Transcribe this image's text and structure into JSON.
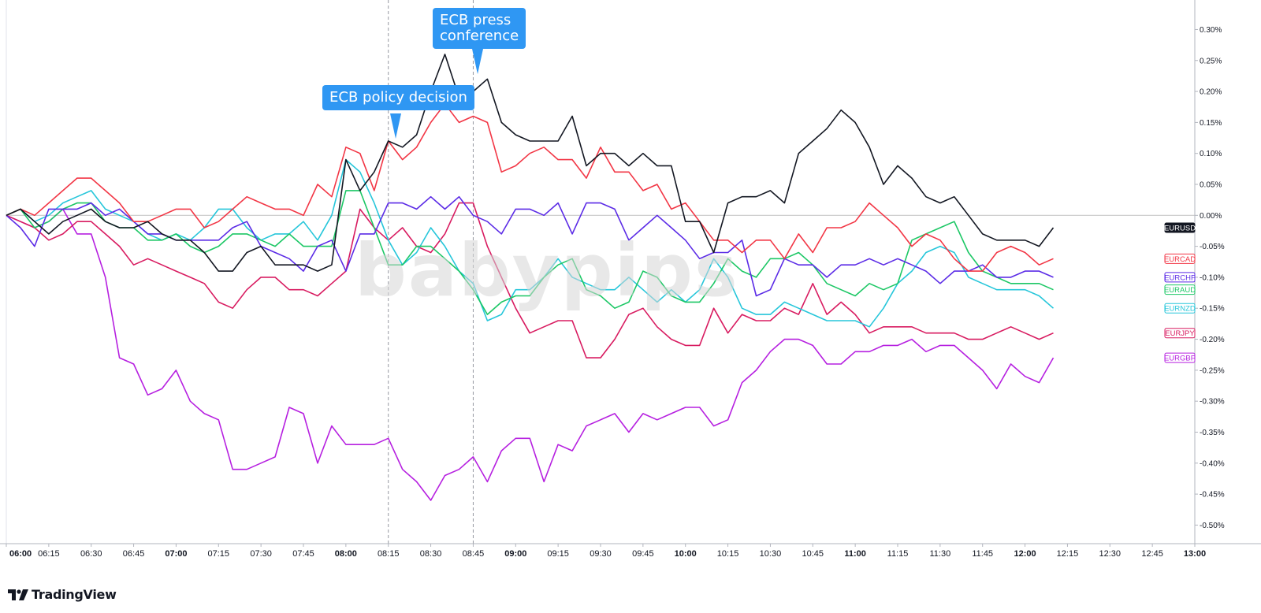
{
  "watermark_text": "babypips",
  "brand": {
    "name": "TradingView",
    "icon": "tradingview-logo-icon"
  },
  "annotations": [
    {
      "id": "policy",
      "text": "ECB policy decision",
      "x_time": "08:15"
    },
    {
      "id": "press",
      "lines": [
        "ECB press",
        "conference"
      ],
      "x_time": "08:45"
    }
  ],
  "chart_data": {
    "type": "line",
    "x_start": "06:00",
    "x_interval_minutes": 5,
    "x_ticks": [
      "06:00",
      "06:15",
      "06:30",
      "06:45",
      "07:00",
      "07:15",
      "07:30",
      "07:45",
      "08:00",
      "08:15",
      "08:30",
      "08:45",
      "09:00",
      "09:15",
      "09:30",
      "09:45",
      "10:00",
      "10:15",
      "10:30",
      "10:45",
      "11:00",
      "11:15",
      "11:30",
      "11:45",
      "12:00",
      "12:15",
      "12:30",
      "12:45",
      "13:00"
    ],
    "x_major_ticks": [
      "06:00",
      "07:00",
      "08:00",
      "09:00",
      "10:00",
      "11:00",
      "12:00",
      "13:00"
    ],
    "y_ticks": [
      "0.30%",
      "0.25%",
      "0.20%",
      "0.15%",
      "0.10%",
      "0.05%",
      "0.00%",
      "-0.05%",
      "-0.10%",
      "-0.15%",
      "-0.20%",
      "-0.25%",
      "-0.30%",
      "-0.35%",
      "-0.40%",
      "-0.45%",
      "-0.50%"
    ],
    "y_unit": "%",
    "ylim": [
      -0.53,
      0.34
    ],
    "zero_line": true,
    "vertical_markers": [
      "08:15",
      "08:45"
    ],
    "series": [
      {
        "name": "EURGBP",
        "color": "#b620e0",
        "values": [
          0.0,
          -0.01,
          -0.02,
          -0.01,
          0.01,
          -0.03,
          -0.03,
          -0.1,
          -0.23,
          -0.24,
          -0.29,
          -0.28,
          -0.25,
          -0.3,
          -0.32,
          -0.33,
          -0.41,
          -0.41,
          -0.4,
          -0.39,
          -0.31,
          -0.32,
          -0.4,
          -0.34,
          -0.37,
          -0.37,
          -0.37,
          -0.36,
          -0.41,
          -0.43,
          -0.46,
          -0.42,
          -0.41,
          -0.39,
          -0.43,
          -0.38,
          -0.36,
          -0.36,
          -0.43,
          -0.37,
          -0.38,
          -0.34,
          -0.33,
          -0.32,
          -0.35,
          -0.32,
          -0.33,
          -0.32,
          -0.31,
          -0.31,
          -0.34,
          -0.33,
          -0.27,
          -0.25,
          -0.22,
          -0.2,
          -0.2,
          -0.21,
          -0.24,
          -0.24,
          -0.22,
          -0.22,
          -0.21,
          -0.21,
          -0.2,
          -0.22,
          -0.21,
          -0.21,
          -0.23,
          -0.25,
          -0.28,
          -0.24,
          -0.26,
          -0.27,
          -0.23
        ]
      },
      {
        "name": "EURJPY",
        "color": "#d81b60",
        "values": [
          0.0,
          -0.01,
          -0.02,
          -0.04,
          -0.03,
          -0.01,
          -0.01,
          -0.03,
          -0.05,
          -0.08,
          -0.07,
          -0.08,
          -0.09,
          -0.1,
          -0.11,
          -0.14,
          -0.15,
          -0.12,
          -0.1,
          -0.1,
          -0.12,
          -0.12,
          -0.13,
          -0.11,
          -0.09,
          0.01,
          -0.02,
          -0.04,
          -0.02,
          -0.05,
          -0.06,
          -0.03,
          0.02,
          0.02,
          -0.05,
          -0.1,
          -0.15,
          -0.19,
          -0.18,
          -0.17,
          -0.17,
          -0.23,
          -0.23,
          -0.2,
          -0.16,
          -0.15,
          -0.18,
          -0.2,
          -0.21,
          -0.21,
          -0.15,
          -0.19,
          -0.16,
          -0.17,
          -0.17,
          -0.15,
          -0.16,
          -0.11,
          -0.16,
          -0.14,
          -0.16,
          -0.19,
          -0.18,
          -0.18,
          -0.18,
          -0.19,
          -0.19,
          -0.19,
          -0.2,
          -0.2,
          -0.19,
          -0.18,
          -0.19,
          -0.2,
          -0.19
        ]
      },
      {
        "name": "EURNZD",
        "color": "#26c6da",
        "values": [
          0.0,
          0.01,
          -0.01,
          0.0,
          0.02,
          0.03,
          0.04,
          0.01,
          0.0,
          -0.01,
          -0.03,
          -0.04,
          -0.03,
          -0.04,
          -0.02,
          0.01,
          0.01,
          -0.02,
          -0.04,
          -0.03,
          -0.03,
          -0.01,
          -0.04,
          0.0,
          0.09,
          0.07,
          0.02,
          -0.04,
          -0.08,
          -0.06,
          -0.02,
          -0.05,
          -0.09,
          -0.11,
          -0.17,
          -0.16,
          -0.12,
          -0.12,
          -0.1,
          -0.07,
          -0.1,
          -0.11,
          -0.12,
          -0.12,
          -0.1,
          -0.12,
          -0.14,
          -0.12,
          -0.14,
          -0.12,
          -0.07,
          -0.1,
          -0.15,
          -0.16,
          -0.16,
          -0.14,
          -0.15,
          -0.16,
          -0.17,
          -0.17,
          -0.17,
          -0.18,
          -0.15,
          -0.11,
          -0.09,
          -0.06,
          -0.05,
          -0.06,
          -0.1,
          -0.11,
          -0.12,
          -0.12,
          -0.12,
          -0.13,
          -0.15
        ]
      },
      {
        "name": "EURAUD",
        "color": "#1cc765",
        "values": [
          0.0,
          0.01,
          -0.02,
          -0.01,
          0.01,
          0.02,
          0.02,
          -0.01,
          -0.02,
          -0.02,
          -0.04,
          -0.04,
          -0.03,
          -0.05,
          -0.06,
          -0.05,
          -0.03,
          -0.03,
          -0.04,
          -0.05,
          -0.03,
          -0.05,
          -0.05,
          -0.05,
          0.04,
          0.04,
          -0.02,
          -0.08,
          -0.08,
          -0.05,
          -0.05,
          -0.07,
          -0.09,
          -0.12,
          -0.16,
          -0.14,
          -0.13,
          -0.13,
          -0.1,
          -0.08,
          -0.07,
          -0.12,
          -0.13,
          -0.15,
          -0.14,
          -0.09,
          -0.1,
          -0.13,
          -0.14,
          -0.14,
          -0.11,
          -0.07,
          -0.09,
          -0.1,
          -0.07,
          -0.07,
          -0.06,
          -0.08,
          -0.11,
          -0.12,
          -0.13,
          -0.11,
          -0.12,
          -0.11,
          -0.04,
          -0.03,
          -0.02,
          -0.01,
          -0.06,
          -0.09,
          -0.1,
          -0.11,
          -0.11,
          -0.11,
          -0.12
        ]
      },
      {
        "name": "EURCHF",
        "color": "#5b2be6",
        "values": [
          0.0,
          -0.02,
          -0.05,
          0.01,
          0.01,
          0.01,
          0.02,
          0.0,
          0.01,
          -0.01,
          -0.03,
          -0.03,
          -0.04,
          -0.04,
          -0.04,
          -0.04,
          -0.02,
          -0.01,
          -0.05,
          -0.06,
          -0.07,
          -0.09,
          -0.05,
          -0.04,
          -0.09,
          -0.03,
          -0.03,
          0.02,
          0.02,
          0.01,
          0.03,
          0.01,
          0.03,
          0.0,
          -0.01,
          -0.03,
          0.01,
          0.01,
          0.0,
          0.02,
          -0.03,
          0.02,
          0.02,
          0.01,
          -0.04,
          -0.02,
          0.0,
          -0.02,
          -0.04,
          -0.07,
          -0.06,
          -0.06,
          -0.04,
          -0.13,
          -0.12,
          -0.07,
          -0.08,
          -0.08,
          -0.1,
          -0.08,
          -0.08,
          -0.07,
          -0.08,
          -0.07,
          -0.08,
          -0.09,
          -0.11,
          -0.09,
          -0.09,
          -0.08,
          -0.1,
          -0.1,
          -0.09,
          -0.09,
          -0.1
        ]
      },
      {
        "name": "EURCAD",
        "color": "#f23645",
        "values": [
          0.0,
          0.01,
          0.0,
          0.02,
          0.04,
          0.06,
          0.06,
          0.04,
          0.02,
          -0.01,
          -0.01,
          0.0,
          0.01,
          0.01,
          -0.02,
          -0.01,
          0.01,
          0.03,
          0.02,
          0.01,
          0.01,
          0.0,
          0.05,
          0.03,
          0.11,
          0.1,
          0.04,
          0.12,
          0.09,
          0.11,
          0.15,
          0.18,
          0.15,
          0.16,
          0.15,
          0.07,
          0.08,
          0.1,
          0.11,
          0.09,
          0.09,
          0.06,
          0.11,
          0.07,
          0.07,
          0.04,
          0.05,
          0.01,
          0.02,
          -0.01,
          -0.04,
          -0.04,
          -0.06,
          -0.04,
          -0.04,
          -0.07,
          -0.03,
          -0.06,
          -0.02,
          -0.02,
          -0.01,
          0.02,
          0.0,
          -0.02,
          -0.05,
          -0.03,
          -0.04,
          -0.07,
          -0.09,
          -0.09,
          -0.06,
          -0.05,
          -0.06,
          -0.08,
          -0.07
        ]
      },
      {
        "name": "EURUSD",
        "color": "#131722",
        "values": [
          0.0,
          0.01,
          -0.01,
          -0.03,
          -0.01,
          0.0,
          0.01,
          -0.01,
          -0.02,
          -0.02,
          -0.01,
          -0.03,
          -0.04,
          -0.04,
          -0.06,
          -0.09,
          -0.09,
          -0.06,
          -0.05,
          -0.08,
          -0.08,
          -0.08,
          -0.09,
          -0.08,
          0.09,
          0.04,
          0.07,
          0.12,
          0.11,
          0.13,
          0.2,
          0.26,
          0.19,
          0.2,
          0.22,
          0.15,
          0.13,
          0.12,
          0.12,
          0.12,
          0.16,
          0.08,
          0.1,
          0.1,
          0.08,
          0.1,
          0.08,
          0.08,
          -0.01,
          -0.01,
          -0.06,
          0.02,
          0.03,
          0.03,
          0.04,
          0.02,
          0.1,
          0.12,
          0.14,
          0.17,
          0.15,
          0.11,
          0.05,
          0.08,
          0.06,
          0.03,
          0.02,
          0.03,
          0.0,
          -0.03,
          -0.04,
          -0.04,
          -0.04,
          -0.05,
          -0.02
        ]
      }
    ]
  }
}
